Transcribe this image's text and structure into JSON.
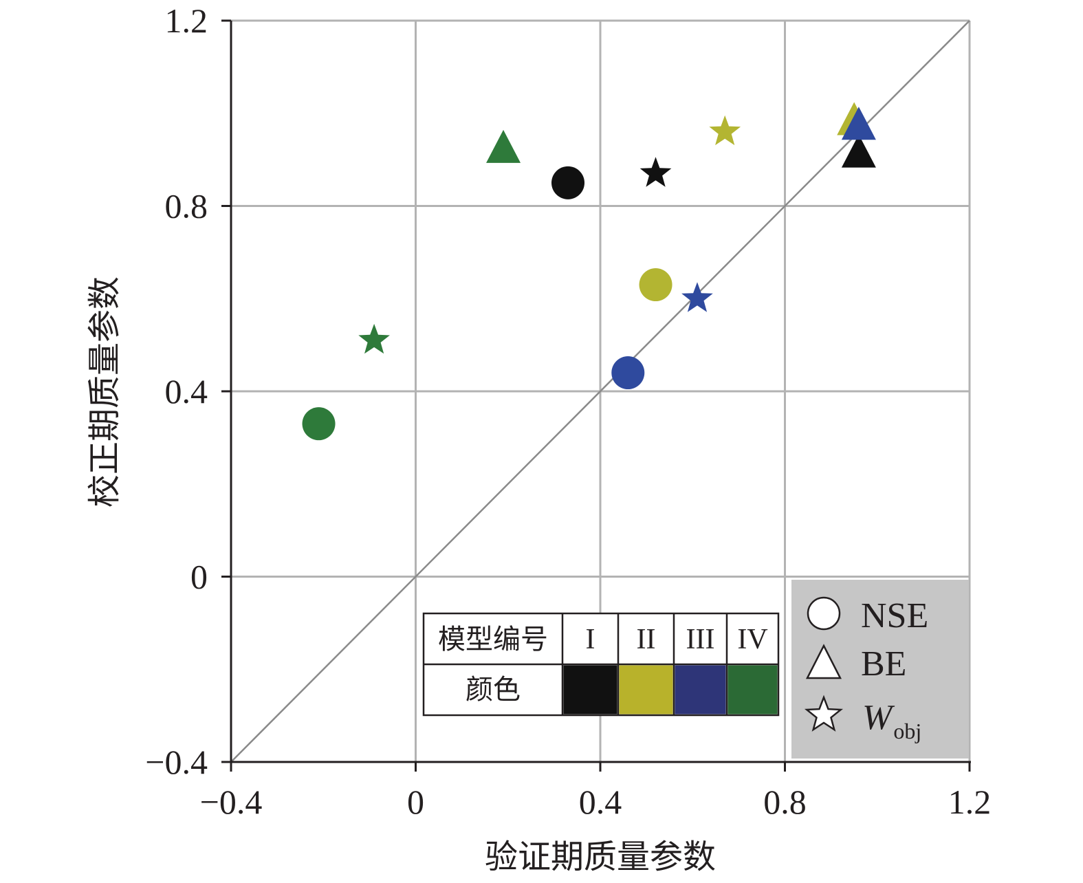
{
  "chart_data": {
    "type": "scatter",
    "title": "",
    "xlabel": "验证期质量参数",
    "ylabel": "校正期质量参数",
    "xlim": [
      -0.4,
      1.2
    ],
    "ylim": [
      -0.4,
      1.2
    ],
    "x_ticks": [
      -0.4,
      0,
      0.4,
      0.8,
      1.2
    ],
    "y_ticks": [
      -0.4,
      0,
      0.4,
      0.8,
      1.2
    ],
    "x_tick_labels": [
      "−0.4",
      "0",
      "0.4",
      "0.8",
      "1.2"
    ],
    "y_tick_labels": [
      "−0.4",
      "0",
      "0.4",
      "0.8",
      "1.2"
    ],
    "grid": true,
    "reference_line": "y = x",
    "legend_markers": {
      "position": "bottom-right",
      "background": "#c6c6c6",
      "items": [
        {
          "marker": "circle",
          "label": "NSE"
        },
        {
          "marker": "triangle",
          "label": "BE"
        },
        {
          "marker": "star",
          "label": "W",
          "label_sub": "obj"
        }
      ]
    },
    "legend_table": {
      "position": "bottom-center",
      "header_label": "模型编号",
      "color_label": "颜色",
      "models": [
        {
          "id": "I",
          "color": "#111111"
        },
        {
          "id": "II",
          "color": "#b8b22b"
        },
        {
          "id": "III",
          "color": "#2e3578"
        },
        {
          "id": "IV",
          "color": "#2b6a35"
        }
      ]
    },
    "series": [
      {
        "model": "I",
        "color": "#111111",
        "points": [
          {
            "metric": "NSE",
            "marker": "circle",
            "x": 0.33,
            "y": 0.85
          },
          {
            "metric": "BE",
            "marker": "triangle",
            "x": 0.96,
            "y": 0.91
          },
          {
            "metric": "Wobj",
            "marker": "star",
            "x": 0.52,
            "y": 0.87
          }
        ]
      },
      {
        "model": "II",
        "color": "#b3b532",
        "points": [
          {
            "metric": "NSE",
            "marker": "circle",
            "x": 0.52,
            "y": 0.63
          },
          {
            "metric": "BE",
            "marker": "triangle",
            "x": 0.95,
            "y": 0.98
          },
          {
            "metric": "Wobj",
            "marker": "star",
            "x": 0.67,
            "y": 0.96
          }
        ]
      },
      {
        "model": "III",
        "color": "#2f4a9e",
        "points": [
          {
            "metric": "NSE",
            "marker": "circle",
            "x": 0.46,
            "y": 0.44
          },
          {
            "metric": "BE",
            "marker": "triangle",
            "x": 0.96,
            "y": 0.97
          },
          {
            "metric": "Wobj",
            "marker": "star",
            "x": 0.61,
            "y": 0.6
          }
        ]
      },
      {
        "model": "IV",
        "color": "#2e7a3a",
        "points": [
          {
            "metric": "NSE",
            "marker": "circle",
            "x": -0.21,
            "y": 0.33
          },
          {
            "metric": "BE",
            "marker": "triangle",
            "x": 0.19,
            "y": 0.92
          },
          {
            "metric": "Wobj",
            "marker": "star",
            "x": -0.09,
            "y": 0.51
          }
        ]
      }
    ]
  }
}
